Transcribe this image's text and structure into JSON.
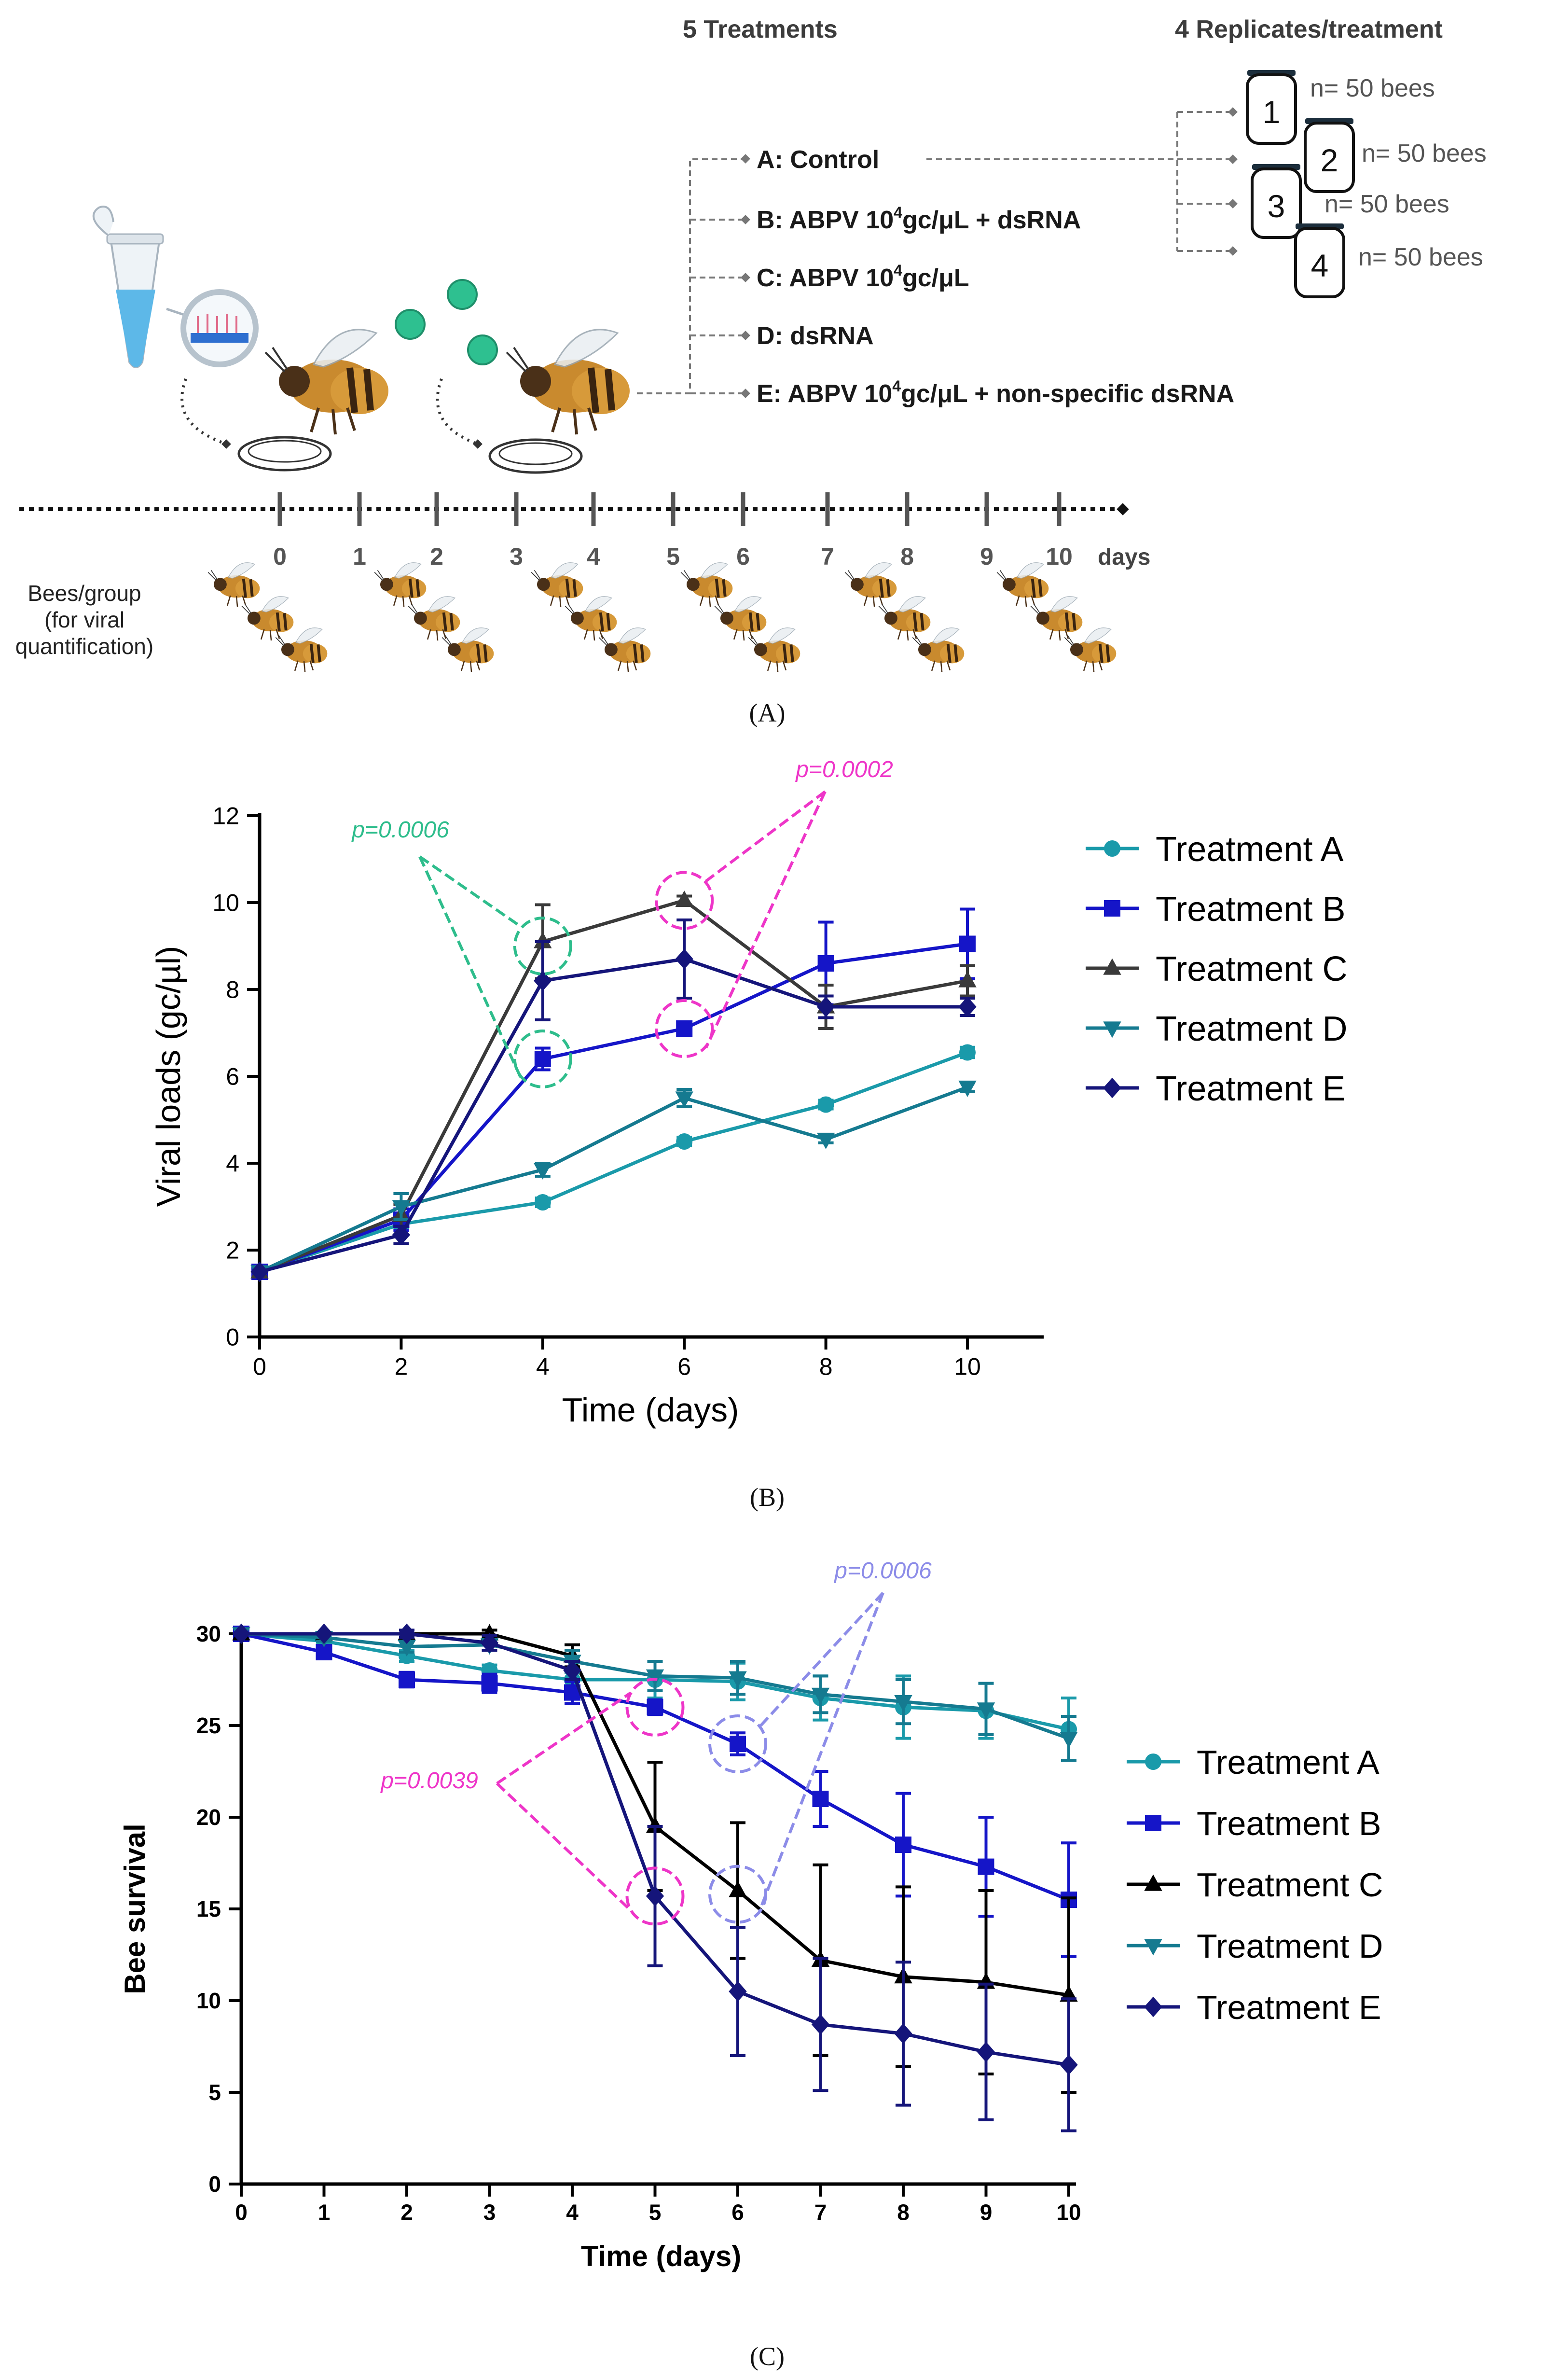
{
  "panel_a": {
    "label": "(A)",
    "treatments_header": "5 Treatments",
    "replicates_header": "4 Replicates/treatment",
    "treatments": [
      {
        "prefix": "A: Control",
        "sup": "",
        "suffix": ""
      },
      {
        "prefix": "B: ABPV 10",
        "sup": "4",
        "suffix": "gc/μL + dsRNA"
      },
      {
        "prefix": "C: ABPV 10",
        "sup": "4",
        "suffix": "gc/μL"
      },
      {
        "prefix": "D: dsRNA",
        "sup": "",
        "suffix": ""
      },
      {
        "prefix": "E: ABPV 10",
        "sup": "4",
        "suffix": "gc/μL + non-specific dsRNA"
      }
    ],
    "replicates": [
      {
        "number": "1",
        "count": "n= 50 bees"
      },
      {
        "number": "2",
        "count": "n= 50 bees"
      },
      {
        "number": "3",
        "count": "n= 50 bees"
      },
      {
        "number": "4",
        "count": "n= 50 bees"
      }
    ],
    "timeline_days": [
      "0",
      "1",
      "2",
      "3",
      "4",
      "5",
      "6",
      "7",
      "8",
      "9",
      "10"
    ],
    "timeline_unit": "days",
    "bees_group_label": [
      "Bees/group",
      "(for viral",
      "quantification)"
    ],
    "sampling_days": [
      "0",
      "2",
      "4",
      "6",
      "8",
      "10"
    ]
  },
  "chart_data": [
    {
      "type": "line",
      "panel_label": "(B)",
      "title": "",
      "xlabel": "Time (days)",
      "ylabel": "Viral loads (gc/µl)",
      "xlim": [
        0,
        11
      ],
      "ylim": [
        0,
        12
      ],
      "xticks": [
        "0",
        "2",
        "4",
        "6",
        "8",
        "10"
      ],
      "yticks": [
        "0",
        "2",
        "4",
        "6",
        "8",
        "10",
        "12"
      ],
      "legend_position": "right",
      "x": [
        0,
        2,
        4,
        6,
        8,
        10
      ],
      "series": [
        {
          "name": "Treatment A",
          "color": "#1a9aaa",
          "marker": "circle",
          "values": [
            1.5,
            2.6,
            3.1,
            4.5,
            5.35,
            6.55
          ],
          "errors": [
            0,
            0.12,
            0.1,
            0.1,
            0.1,
            0.12
          ]
        },
        {
          "name": "Treatment B",
          "color": "#1515c8",
          "marker": "square",
          "values": [
            1.5,
            2.7,
            6.4,
            7.1,
            8.6,
            9.05
          ],
          "errors": [
            0,
            0.25,
            0.25,
            0.15,
            0.95,
            0.8
          ]
        },
        {
          "name": "Treatment C",
          "color": "#3a3a3a",
          "marker": "triangle-up",
          "values": [
            1.5,
            2.8,
            9.1,
            10.05,
            7.6,
            8.2
          ],
          "errors": [
            0,
            0.25,
            0.85,
            0.1,
            0.5,
            0.35
          ]
        },
        {
          "name": "Treatment D",
          "color": "#157a90",
          "marker": "triangle-down",
          "values": [
            1.5,
            3.0,
            3.85,
            5.5,
            4.55,
            5.75
          ],
          "errors": [
            0,
            0.3,
            0.15,
            0.2,
            0.08,
            0.1
          ]
        },
        {
          "name": "Treatment E",
          "color": "#15157a",
          "marker": "diamond",
          "values": [
            1.5,
            2.35,
            8.2,
            8.7,
            7.6,
            7.6
          ],
          "errors": [
            0,
            0.2,
            0.9,
            0.9,
            0.25,
            0.2
          ]
        }
      ],
      "annotations": [
        {
          "text": "p=0.0006",
          "color": "#2ebd8c",
          "circles": [
            [
              4,
              9.0
            ],
            [
              4,
              6.4
            ]
          ]
        },
        {
          "text": "p=0.0002",
          "color": "#ee35c8",
          "circles": [
            [
              6,
              10.05
            ],
            [
              6,
              7.1
            ]
          ]
        }
      ]
    },
    {
      "type": "line",
      "panel_label": "(C)",
      "title": "",
      "xlabel": "Time (days)",
      "ylabel": "Bee survival",
      "xlim": [
        0,
        10
      ],
      "ylim": [
        0,
        30
      ],
      "xticks": [
        "0",
        "1",
        "2",
        "3",
        "4",
        "5",
        "6",
        "7",
        "8",
        "9",
        "10"
      ],
      "yticks": [
        "0",
        "5",
        "10",
        "15",
        "20",
        "25",
        "30"
      ],
      "legend_position": "right",
      "x": [
        0,
        1,
        2,
        3,
        4,
        5,
        6,
        7,
        8,
        9,
        10
      ],
      "series": [
        {
          "name": "Treatment A",
          "color": "#1a9aaa",
          "marker": "circle",
          "values": [
            30,
            29.6,
            28.8,
            28.0,
            27.5,
            27.5,
            27.4,
            26.5,
            26.0,
            25.8,
            24.8
          ],
          "errors": [
            0,
            0.2,
            0.3,
            0.3,
            0.5,
            1.0,
            1.0,
            1.2,
            1.7,
            1.5,
            1.7
          ]
        },
        {
          "name": "Treatment B",
          "color": "#1515c8",
          "marker": "square",
          "values": [
            30,
            29.0,
            27.5,
            27.3,
            26.8,
            26.0,
            24.0,
            21.0,
            18.5,
            17.3,
            15.5
          ],
          "errors": [
            0,
            0.3,
            0.4,
            0.5,
            0.6,
            0.4,
            0.6,
            1.5,
            2.8,
            2.7,
            3.1
          ]
        },
        {
          "name": "Treatment C",
          "color": "#000000",
          "marker": "triangle-up",
          "values": [
            30,
            30,
            30,
            30,
            28.8,
            19.5,
            16.0,
            12.2,
            11.3,
            11.0,
            10.3
          ],
          "errors": [
            0,
            0,
            0,
            0.2,
            0.6,
            3.5,
            3.7,
            5.2,
            4.9,
            5.0,
            5.3
          ]
        },
        {
          "name": "Treatment D",
          "color": "#157a90",
          "marker": "triangle-down",
          "values": [
            30,
            29.8,
            29.3,
            29.4,
            28.5,
            27.7,
            27.6,
            26.7,
            26.3,
            25.9,
            24.3
          ],
          "errors": [
            0,
            0.2,
            0.3,
            0.3,
            0.6,
            0.8,
            0.9,
            1.0,
            1.2,
            1.4,
            1.2
          ]
        },
        {
          "name": "Treatment E",
          "color": "#15157a",
          "marker": "diamond",
          "values": [
            30,
            30,
            30,
            29.5,
            28.0,
            15.7,
            10.5,
            8.7,
            8.2,
            7.2,
            6.5
          ],
          "errors": [
            0,
            0,
            0.2,
            0.4,
            0.5,
            3.8,
            3.5,
            3.6,
            3.9,
            3.7,
            3.6
          ]
        }
      ],
      "annotations": [
        {
          "text": "p=0.0039",
          "color": "#ee35c8",
          "circles": [
            [
              5,
              26.0
            ],
            [
              5,
              15.7
            ]
          ]
        },
        {
          "text": "p=0.0006",
          "color": "#8c8ce8",
          "circles": [
            [
              6,
              24.0
            ],
            [
              6,
              15.8
            ]
          ]
        }
      ]
    }
  ]
}
